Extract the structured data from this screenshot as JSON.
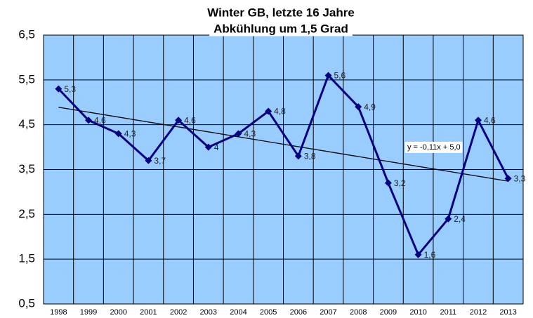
{
  "chart_data": {
    "type": "line",
    "title": "Winter GB, letzte 16 Jahre",
    "subtitle": "Abkühlung um 1,5 Grad",
    "categories": [
      "1998",
      "1999",
      "2000",
      "2001",
      "2002",
      "2003",
      "2004",
      "2005",
      "2006",
      "2007",
      "2008",
      "2009",
      "2010",
      "2011",
      "2012",
      "2013"
    ],
    "series": [
      {
        "name": "Winter GB",
        "color": "#000080",
        "values": [
          5.3,
          4.6,
          4.3,
          3.7,
          4.6,
          4.0,
          4.3,
          4.8,
          3.8,
          5.6,
          4.9,
          3.2,
          1.6,
          2.4,
          4.6,
          3.3
        ],
        "value_labels": [
          "5,3",
          "4,6",
          "4,3",
          "3,7",
          "4,6",
          "4",
          "4,3",
          "4,8",
          "3,8",
          "5,6",
          "4,9",
          "3,2",
          "1,6",
          "2,4",
          "4,6",
          "3,3"
        ]
      }
    ],
    "trendline": {
      "label": "y = -0,11x + 5,0",
      "slope": -0.11,
      "intercept": 5.0
    },
    "ylim": [
      0.5,
      6.5
    ],
    "yticks": [
      {
        "value": 0.5,
        "label": "0,5"
      },
      {
        "value": 1.5,
        "label": "1,5"
      },
      {
        "value": 2.5,
        "label": "2,5"
      },
      {
        "value": 3.5,
        "label": "3,5"
      },
      {
        "value": 4.5,
        "label": "4,5"
      },
      {
        "value": 5.5,
        "label": "5,5"
      },
      {
        "value": 6.5,
        "label": "6,5"
      }
    ],
    "grid": true,
    "background": "#99ccff"
  }
}
